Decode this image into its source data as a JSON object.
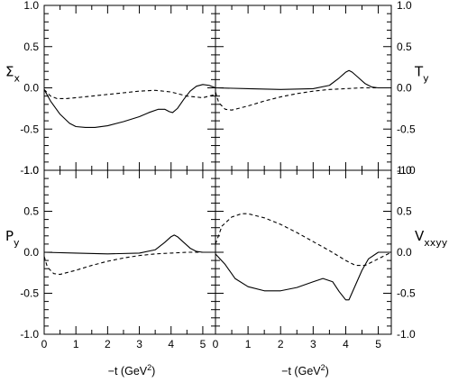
{
  "chart_data": [
    {
      "type": "line",
      "panel": "top-left",
      "ylabel": "Σ",
      "ylabel_sub": "x",
      "xlim": [
        0,
        5.4
      ],
      "ylim": [
        -1.0,
        1.0
      ],
      "series": [
        {
          "style": "solid",
          "x": [
            0,
            0.2,
            0.5,
            0.8,
            1.0,
            1.3,
            1.6,
            2.0,
            2.5,
            3.0,
            3.3,
            3.6,
            3.8,
            3.95,
            4.05,
            4.2,
            4.4,
            4.6,
            4.8,
            5.0,
            5.2,
            5.4
          ],
          "y": [
            -0.02,
            -0.16,
            -0.32,
            -0.43,
            -0.47,
            -0.48,
            -0.48,
            -0.46,
            -0.41,
            -0.35,
            -0.3,
            -0.26,
            -0.26,
            -0.29,
            -0.3,
            -0.25,
            -0.14,
            -0.04,
            0.02,
            0.04,
            0.03,
            0.0
          ]
        },
        {
          "style": "dashed",
          "x": [
            0,
            0.2,
            0.4,
            0.7,
            1.0,
            1.5,
            2.0,
            2.5,
            3.0,
            3.5,
            4.0,
            4.5,
            5.0,
            5.4
          ],
          "y": [
            -0.02,
            -0.1,
            -0.13,
            -0.13,
            -0.12,
            -0.1,
            -0.08,
            -0.06,
            -0.04,
            -0.03,
            -0.05,
            -0.1,
            -0.12,
            -0.08
          ]
        }
      ]
    },
    {
      "type": "line",
      "panel": "top-right",
      "ylabel": "T",
      "ylabel_sub": "y",
      "xlim": [
        0,
        5.4
      ],
      "ylim": [
        -1.0,
        1.0
      ],
      "series": [
        {
          "style": "solid",
          "x": [
            0,
            1.0,
            2.0,
            3.0,
            3.5,
            3.8,
            4.0,
            4.1,
            4.2,
            4.4,
            4.6,
            4.8,
            5.0,
            5.4
          ],
          "y": [
            0.0,
            -0.01,
            -0.02,
            -0.01,
            0.03,
            0.12,
            0.19,
            0.21,
            0.19,
            0.12,
            0.05,
            0.01,
            0.0,
            0.0
          ]
        },
        {
          "style": "dashed",
          "x": [
            0,
            0.1,
            0.3,
            0.5,
            1.0,
            1.5,
            2.0,
            2.5,
            3.0,
            3.5,
            4.0,
            4.5,
            5.0,
            5.4
          ],
          "y": [
            -0.05,
            -0.18,
            -0.26,
            -0.27,
            -0.22,
            -0.16,
            -0.11,
            -0.07,
            -0.04,
            -0.02,
            -0.01,
            0.0,
            0.0,
            0.0
          ]
        }
      ]
    },
    {
      "type": "line",
      "panel": "bottom-left",
      "ylabel": "P",
      "ylabel_sub": "y",
      "xlim": [
        0,
        5.4
      ],
      "ylim": [
        -1.0,
        1.0
      ],
      "series": [
        {
          "style": "solid",
          "x": [
            0,
            1.0,
            2.0,
            3.0,
            3.5,
            3.8,
            4.0,
            4.1,
            4.2,
            4.4,
            4.6,
            4.8,
            5.0,
            5.4
          ],
          "y": [
            0.0,
            -0.01,
            -0.02,
            -0.01,
            0.03,
            0.12,
            0.19,
            0.21,
            0.19,
            0.12,
            0.05,
            0.01,
            0.0,
            0.0
          ]
        },
        {
          "style": "dashed",
          "x": [
            0,
            0.1,
            0.3,
            0.5,
            1.0,
            1.5,
            2.0,
            2.5,
            3.0,
            3.5,
            4.0,
            4.5,
            5.0,
            5.4
          ],
          "y": [
            -0.05,
            -0.18,
            -0.26,
            -0.27,
            -0.22,
            -0.16,
            -0.11,
            -0.07,
            -0.04,
            -0.02,
            -0.01,
            0.0,
            0.0,
            0.0
          ]
        }
      ]
    },
    {
      "type": "line",
      "panel": "bottom-right",
      "ylabel": "V",
      "ylabel_sub": "xxyy",
      "xlim": [
        0,
        5.4
      ],
      "ylim": [
        -1.0,
        1.0
      ],
      "series": [
        {
          "style": "solid",
          "x": [
            0,
            0.3,
            0.6,
            1.0,
            1.5,
            2.0,
            2.5,
            3.0,
            3.3,
            3.6,
            3.8,
            4.0,
            4.1,
            4.3,
            4.5,
            4.7,
            5.0,
            5.4
          ],
          "y": [
            -0.02,
            -0.15,
            -0.32,
            -0.42,
            -0.47,
            -0.47,
            -0.43,
            -0.36,
            -0.32,
            -0.36,
            -0.48,
            -0.58,
            -0.58,
            -0.4,
            -0.22,
            -0.08,
            0.0,
            0.0
          ]
        },
        {
          "style": "dashed",
          "x": [
            0,
            0.2,
            0.5,
            0.8,
            1.0,
            1.5,
            2.0,
            2.5,
            3.0,
            3.5,
            4.0,
            4.3,
            4.6,
            5.0,
            5.4
          ],
          "y": [
            0.1,
            0.32,
            0.43,
            0.47,
            0.47,
            0.42,
            0.34,
            0.24,
            0.13,
            0.02,
            -0.1,
            -0.16,
            -0.16,
            -0.08,
            0.0
          ]
        }
      ]
    }
  ],
  "axes": {
    "y_ticks": [
      "1.0",
      "0.5",
      "0.0",
      "-0.5",
      "-1.0"
    ],
    "y_ticks_right_top": [
      "1.0",
      "0.5",
      "0.0",
      "-0.5",
      "-1.0"
    ],
    "y_ticks_right_bottom": [
      "1.0",
      "0.5",
      "0.0",
      "-0.5",
      "-1.0"
    ],
    "x_ticks": [
      "0",
      "1",
      "2",
      "3",
      "4",
      "5"
    ],
    "x_title_left": "−t  (GeV",
    "x_title_right": "−t  (GeV",
    "x_title_sup": "2",
    "x_title_close": ")"
  }
}
